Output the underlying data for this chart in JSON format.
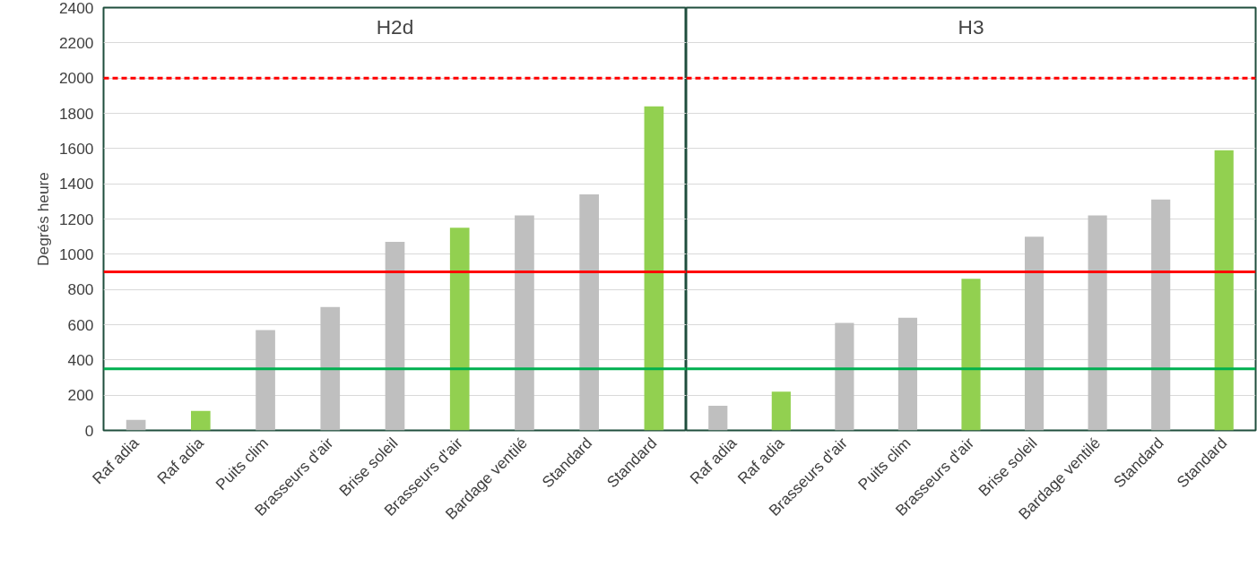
{
  "chart_data": [
    {
      "type": "bar",
      "title": "H2d",
      "ylabel": "Degrés heure",
      "categories": [
        "Raf adia",
        "Raf adia",
        "Puits clim",
        "Brasseurs d'air",
        "Brise soleil",
        "Brasseurs d'air",
        "Bardage ventilé",
        "Standard",
        "Standard"
      ],
      "values": [
        60,
        110,
        570,
        700,
        1070,
        1150,
        1220,
        1340,
        1840
      ],
      "colors": [
        "#bfbfbf",
        "#92d050",
        "#bfbfbf",
        "#bfbfbf",
        "#bfbfbf",
        "#92d050",
        "#bfbfbf",
        "#bfbfbf",
        "#92d050"
      ],
      "ylim": [
        0,
        2400
      ],
      "yticks": [
        0,
        200,
        400,
        600,
        800,
        1000,
        1200,
        1400,
        1600,
        1800,
        2000,
        2200,
        2400
      ],
      "grid": "y",
      "ref_lines": [
        {
          "axis": "y",
          "value": 2000,
          "color": "#ff0000",
          "line_style": "dashed"
        },
        {
          "axis": "y",
          "value": 900,
          "color": "#ff0000",
          "line_style": "solid"
        },
        {
          "axis": "y",
          "value": 350,
          "color": "#00b050",
          "line_style": "solid"
        }
      ]
    },
    {
      "type": "bar",
      "title": "H3",
      "categories": [
        "Raf adia",
        "Raf adia",
        "Brasseurs d'air",
        "Puits clim",
        "Brasseurs d'air",
        "Brise soleil",
        "Bardage ventilé",
        "Standard",
        "Standard"
      ],
      "values": [
        140,
        220,
        610,
        640,
        860,
        1100,
        1220,
        1310,
        1590
      ],
      "colors": [
        "#bfbfbf",
        "#92d050",
        "#bfbfbf",
        "#bfbfbf",
        "#92d050",
        "#bfbfbf",
        "#bfbfbf",
        "#bfbfbf",
        "#92d050"
      ],
      "ylim": [
        0,
        2400
      ],
      "yticks": [
        0,
        200,
        400,
        600,
        800,
        1000,
        1200,
        1400,
        1600,
        1800,
        2000,
        2200,
        2400
      ],
      "grid": "y",
      "tick_labels": "x",
      "ref_lines": [
        {
          "axis": "y",
          "value": 2000,
          "color": "#ff0000",
          "line_style": "dashed"
        },
        {
          "axis": "y",
          "value": 900,
          "color": "#ff0000",
          "line_style": "solid"
        },
        {
          "axis": "y",
          "value": 350,
          "color": "#00b050",
          "line_style": "solid"
        }
      ]
    }
  ]
}
